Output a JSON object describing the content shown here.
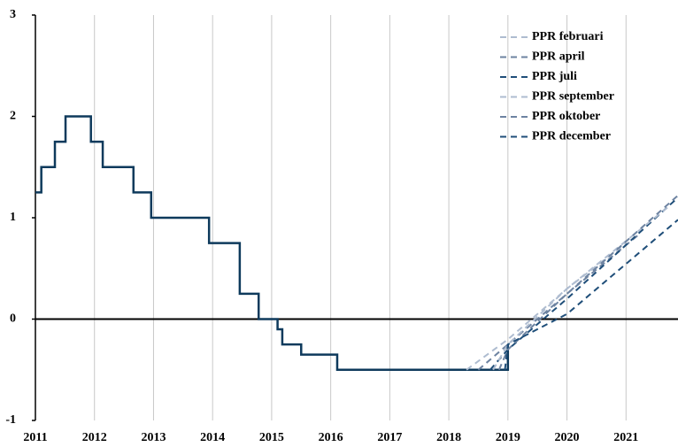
{
  "chart_data": {
    "type": "line",
    "xlim": [
      2011,
      2021.88
    ],
    "xticks": [
      2011,
      2012,
      2013,
      2014,
      2015,
      2016,
      2017,
      2018,
      2019,
      2020,
      2021
    ],
    "ylim": [
      -1,
      3
    ],
    "yticks": [
      -1,
      0,
      1,
      2,
      3
    ],
    "grid": "x",
    "zero_line": true,
    "legend": "upper right",
    "series": [
      {
        "color": "#0e3a5c",
        "step": true,
        "dash": false,
        "x": [
          2011,
          2011.1,
          2011.33,
          2011.51,
          2011.94,
          2012.14,
          2012.66,
          2012.96,
          2013.94,
          2014.46,
          2014.78,
          2015.1,
          2015.18,
          2015.5,
          2016.11,
          2019.0
        ],
        "values": [
          1.25,
          1.5,
          1.75,
          2.0,
          1.75,
          1.5,
          1.25,
          1.0,
          0.75,
          0.25,
          0,
          -0.1,
          -0.25,
          -0.35,
          -0.5,
          -0.25
        ]
      },
      {
        "name": "PPR februari",
        "color": "#aebcd0",
        "dash": true,
        "x": [
          2018.3,
          2019.0,
          2020.0,
          2021.0
        ],
        "values": [
          -0.5,
          -0.2,
          0.3,
          0.75
        ]
      },
      {
        "name": "PPR april",
        "color": "#6d83a1",
        "dash": true,
        "x": [
          2018.5,
          2019.0,
          2020.0,
          2021.25
        ],
        "values": [
          -0.5,
          -0.25,
          0.25,
          0.85
        ]
      },
      {
        "name": "PPR juli",
        "color": "#1f4e79",
        "dash": true,
        "x": [
          2018.7,
          2019.0,
          2020.0,
          2021.88
        ],
        "values": [
          -0.5,
          -0.3,
          0.2,
          1.2
        ]
      },
      {
        "name": "PPR september",
        "color": "#aebcd0",
        "dash": true,
        "x": [
          2018.75,
          2019.0,
          2020.0,
          2021.7
        ],
        "values": [
          -0.5,
          -0.25,
          0.3,
          1.1
        ]
      },
      {
        "name": "PPR oktober",
        "color": "#6d83a1",
        "dash": true,
        "x": [
          2018.85,
          2019.0,
          2020.0,
          2021.88
        ],
        "values": [
          -0.5,
          -0.3,
          0.25,
          1.22
        ]
      },
      {
        "name": "PPR december",
        "color": "#1f4e79",
        "dash": true,
        "x": [
          2018.95,
          2019.0,
          2020.0,
          2021.88
        ],
        "values": [
          -0.5,
          -0.25,
          0.05,
          0.98
        ]
      }
    ]
  }
}
